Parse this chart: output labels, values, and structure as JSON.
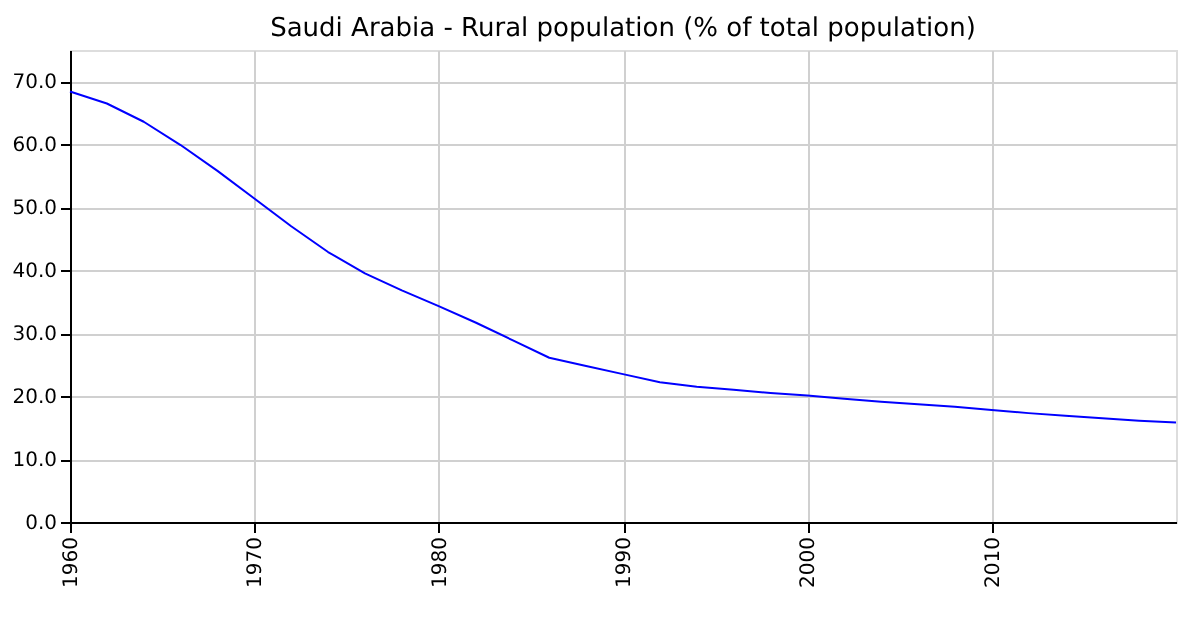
{
  "chart_data": {
    "type": "line",
    "title": "Saudi Arabia - Rural population (% of total population)",
    "x": [
      1960,
      1962,
      1964,
      1966,
      1968,
      1970,
      1972,
      1974,
      1976,
      1978,
      1980,
      1982,
      1984,
      1986,
      1988,
      1990,
      1992,
      1994,
      1996,
      1998,
      2000,
      2002,
      2004,
      2006,
      2008,
      2010,
      2012,
      2014,
      2016,
      2018,
      2020
    ],
    "series": [
      {
        "color": "#0000ff",
        "values": [
          68.4,
          66.5,
          63.6,
          59.9,
          55.8,
          51.4,
          47.0,
          42.9,
          39.5,
          36.8,
          34.3,
          31.7,
          28.9,
          26.1,
          24.8,
          23.5,
          22.2,
          21.5,
          21.0,
          20.5,
          20.1,
          19.6,
          19.1,
          18.7,
          18.3,
          17.8,
          17.3,
          16.9,
          16.5,
          16.1,
          15.8
        ]
      }
    ],
    "xlim": [
      1960,
      2020
    ],
    "xticks": [
      1960,
      1970,
      1980,
      1990,
      2000,
      2010
    ],
    "ylim": [
      0,
      75
    ],
    "yticks": [
      {
        "value": 0,
        "label": "0.0"
      },
      {
        "value": 10,
        "label": "10.0"
      },
      {
        "value": 20,
        "label": "20.0"
      },
      {
        "value": 30,
        "label": "30.0"
      },
      {
        "value": 40,
        "label": "40.0"
      },
      {
        "value": 50,
        "label": "50.0"
      },
      {
        "value": 60,
        "label": "60.0"
      },
      {
        "value": 70,
        "label": "70.0"
      }
    ],
    "grid": true,
    "marker": "none",
    "line_style": "solid"
  }
}
